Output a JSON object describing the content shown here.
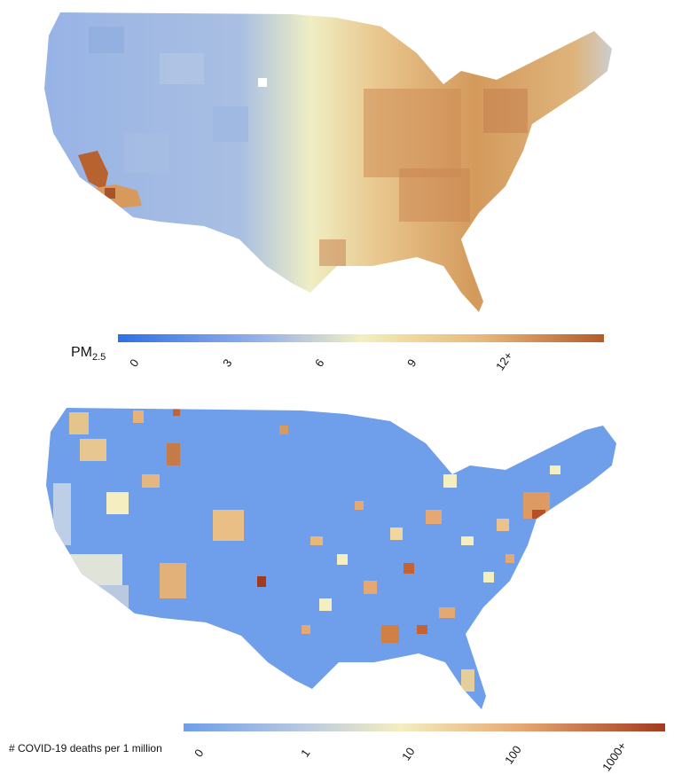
{
  "pm_panel": {
    "legend_title_main": "PM",
    "legend_title_sub": "2.5",
    "ticks": [
      "0",
      "3",
      "6",
      "9",
      "12+"
    ],
    "colors": [
      "#2f6fe8",
      "#98b4e8",
      "#f2efc0",
      "#e8b87a",
      "#b35b2a"
    ]
  },
  "covid_panel": {
    "legend_title": "# COVID-19 deaths per 1 million",
    "ticks": [
      "0",
      "1",
      "10",
      "100",
      "1000+"
    ],
    "colors": [
      "#6f9eea",
      "#b9c9e0",
      "#f4eec0",
      "#e6a872",
      "#a33a1e"
    ]
  }
}
